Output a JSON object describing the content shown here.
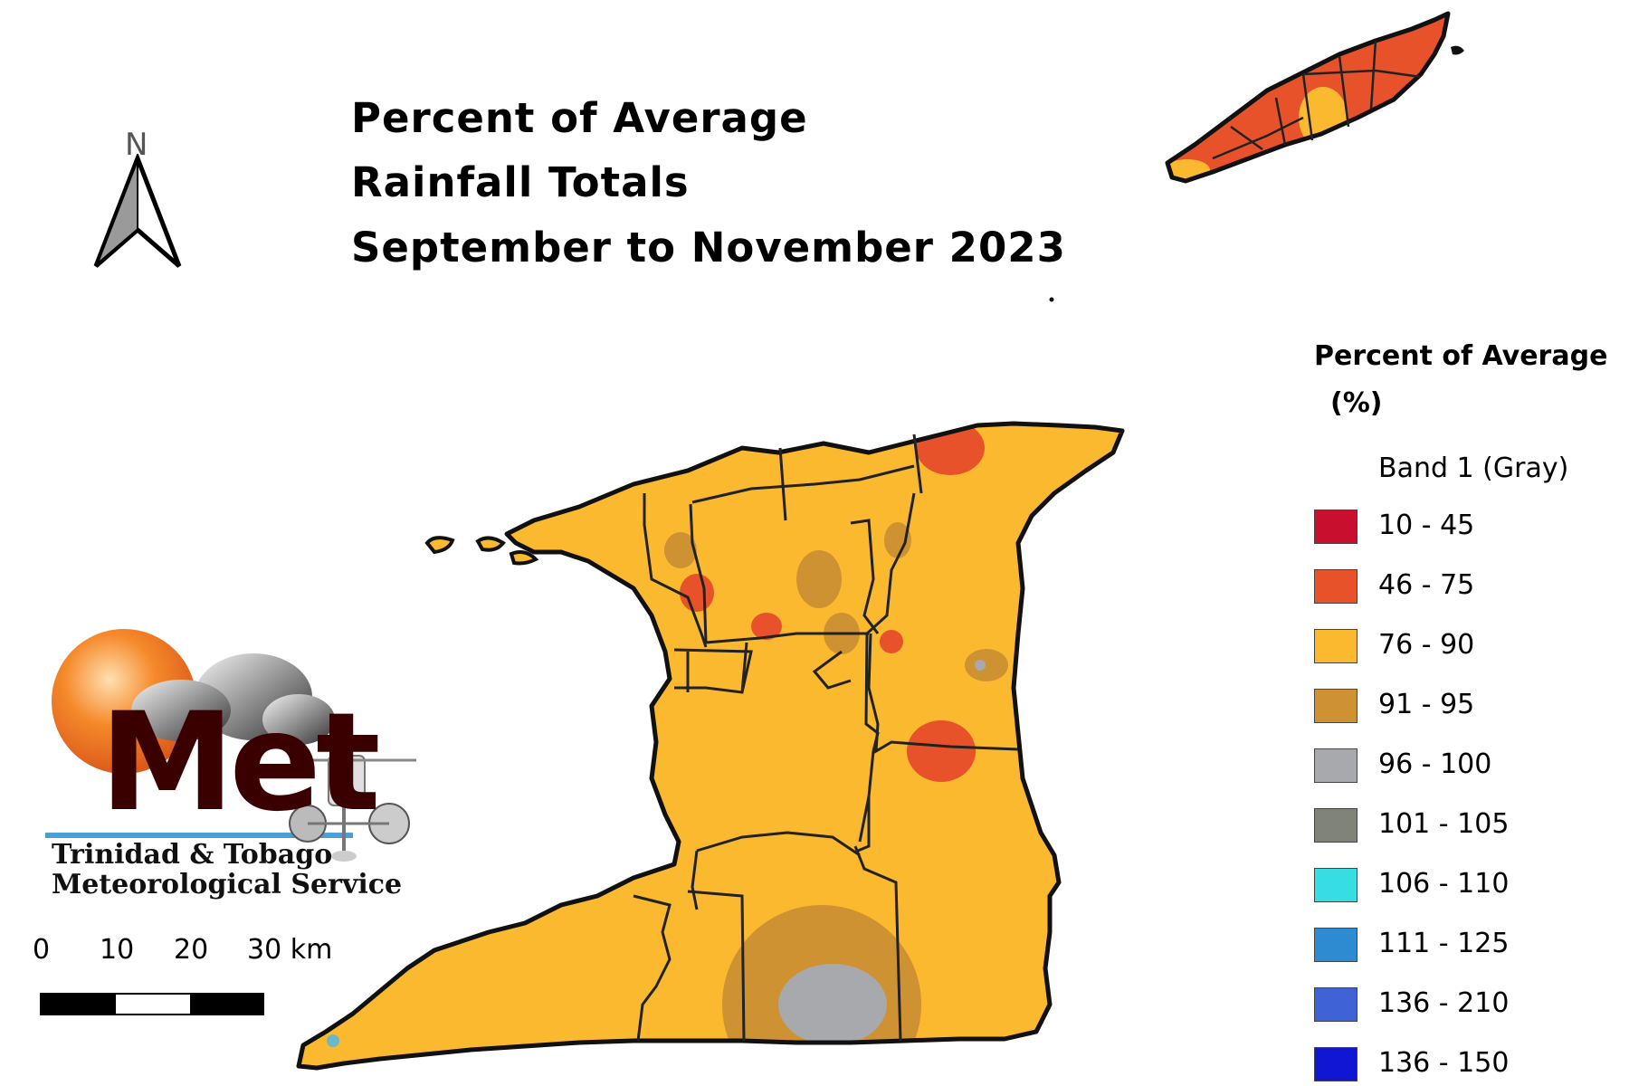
{
  "title": {
    "line1": "Percent of Average",
    "line2": "Rainfall Totals",
    "line3": "September to November 2023"
  },
  "legend": {
    "title_line1": "Percent of Average",
    "title_line2": "(%)",
    "band_label": "Band 1 (Gray)",
    "items": [
      {
        "label": "10 - 45",
        "color": "#c8102e"
      },
      {
        "label": "46 - 75",
        "color": "#e8522b"
      },
      {
        "label": "76 - 90",
        "color": "#fbb92f"
      },
      {
        "label": "91 - 95",
        "color": "#cf9232"
      },
      {
        "label": "96 - 100",
        "color": "#a7a9ac"
      },
      {
        "label": "101 - 105",
        "color": "#808378"
      },
      {
        "label": "106 - 110",
        "color": "#36dde2"
      },
      {
        "label": "111 - 125",
        "color": "#2e8bd2"
      },
      {
        "label": "136 - 210",
        "color": "#3f63d6"
      },
      {
        "label": "136 - 150",
        "color": "#1116d2"
      }
    ]
  },
  "north_arrow": {
    "label": "N",
    "icon": "north-arrow-icon"
  },
  "scale_bar": {
    "ticks": [
      "0",
      "10",
      "20",
      "30 km"
    ]
  },
  "logo": {
    "name": "Met",
    "org_line1": "Trinidad & Tobago",
    "org_line2": "Meteorological Service"
  },
  "map": {
    "islands": [
      "Trinidad",
      "Tobago"
    ],
    "base_color": "#fbb92f"
  }
}
